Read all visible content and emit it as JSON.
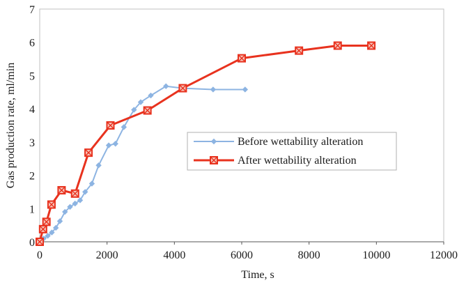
{
  "chart_data": {
    "type": "line",
    "xlabel": "Time,  s",
    "ylabel": "Gas production rate, ml/min",
    "xlim": [
      0,
      12000
    ],
    "ylim": [
      0,
      7
    ],
    "xticks": [
      0,
      2000,
      4000,
      6000,
      8000,
      10000,
      12000
    ],
    "yticks": [
      0,
      1,
      2,
      3,
      4,
      5,
      6,
      7
    ],
    "grid": false,
    "legend_position": "center-right",
    "series": [
      {
        "name": "Before wettability alteration",
        "color": "#8db4e2",
        "marker": "diamond",
        "x": [
          0,
          120,
          240,
          360,
          480,
          600,
          750,
          900,
          1050,
          1200,
          1350,
          1550,
          1750,
          2050,
          2250,
          2500,
          2800,
          3000,
          3300,
          3750,
          4250,
          5150,
          6100
        ],
        "y": [
          0.0,
          0.1,
          0.18,
          0.28,
          0.42,
          0.62,
          0.9,
          1.05,
          1.15,
          1.25,
          1.5,
          1.75,
          2.3,
          2.9,
          2.95,
          3.45,
          3.97,
          4.2,
          4.4,
          4.68,
          4.62,
          4.58,
          4.58
        ]
      },
      {
        "name": "After wettability alteration",
        "color": "#e8321e",
        "marker": "square-x",
        "x": [
          0,
          100,
          200,
          350,
          650,
          1050,
          1450,
          2100,
          3200,
          4250,
          6000,
          7700,
          8850,
          9850
        ],
        "y": [
          0.0,
          0.38,
          0.6,
          1.12,
          1.55,
          1.45,
          2.68,
          3.5,
          3.95,
          4.62,
          5.52,
          5.75,
          5.9,
          5.9
        ]
      }
    ]
  }
}
